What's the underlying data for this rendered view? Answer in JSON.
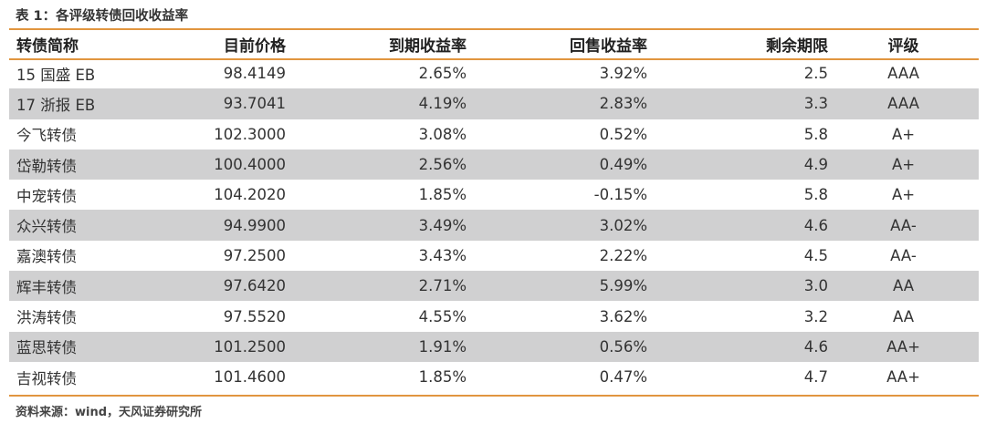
{
  "title": "表 1：各评级转债回收收益率",
  "headers": [
    "转债简称",
    "目前价格",
    "到期收益率",
    "回售收益率",
    "剩余期限",
    "评级"
  ],
  "rows": [
    [
      "15 国盛 EB",
      "98.4149",
      "2.65%",
      "3.92%",
      "2.5",
      "AAA"
    ],
    [
      "17 浙报 EB",
      "93.7041",
      "4.19%",
      "2.83%",
      "3.3",
      "AAA"
    ],
    [
      "今飞转债",
      "102.3000",
      "3.08%",
      "0.52%",
      "5.8",
      "A+"
    ],
    [
      "岱勒转债",
      "100.4000",
      "2.56%",
      "0.49%",
      "4.9",
      "A+"
    ],
    [
      "中宠转债",
      "104.2020",
      "1.85%",
      "-0.15%",
      "5.8",
      "A+"
    ],
    [
      "众兴转债",
      "94.9900",
      "3.49%",
      "3.02%",
      "4.6",
      "AA-"
    ],
    [
      "嘉澳转债",
      "97.2500",
      "3.43%",
      "2.22%",
      "4.5",
      "AA-"
    ],
    [
      "辉丰转债",
      "97.6420",
      "2.71%",
      "5.99%",
      "3.0",
      "AA"
    ],
    [
      "洪涛转债",
      "97.5520",
      "4.55%",
      "3.62%",
      "3.2",
      "AA"
    ],
    [
      "蓝思转债",
      "101.2500",
      "1.91%",
      "0.56%",
      "4.6",
      "AA+"
    ],
    [
      "吉视转债",
      "101.4600",
      "1.85%",
      "0.47%",
      "4.7",
      "AA+"
    ]
  ],
  "source": "资料来源：wind，天风证券研究所",
  "colors": {
    "accent_rule": "#e1953f",
    "alt_row": "#d0d0d1"
  }
}
